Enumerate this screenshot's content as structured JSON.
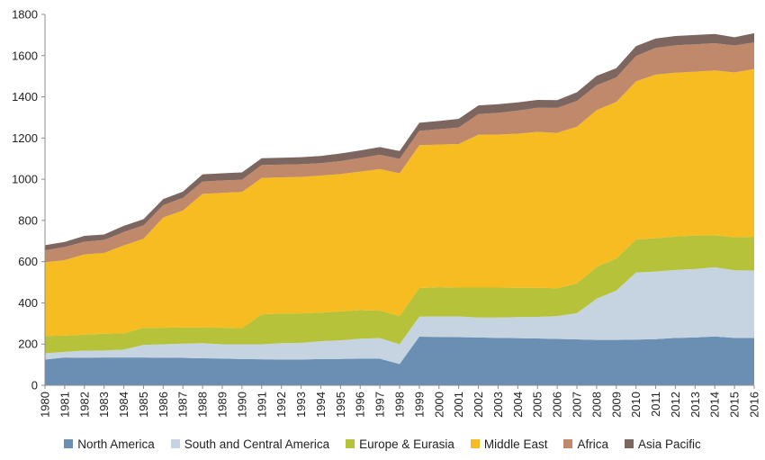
{
  "chart_data": {
    "type": "area",
    "stacked": true,
    "title": "",
    "xlabel": "",
    "ylabel": "",
    "ylim": [
      0,
      1800
    ],
    "yticks": [
      0,
      200,
      400,
      600,
      800,
      1000,
      1200,
      1400,
      1600,
      1800
    ],
    "grid": false,
    "legend_position": "bottom",
    "categories": [
      "1980",
      "1981",
      "1982",
      "1983",
      "1984",
      "1985",
      "1986",
      "1987",
      "1988",
      "1989",
      "1990",
      "1991",
      "1992",
      "1993",
      "1994",
      "1995",
      "1996",
      "1997",
      "1998",
      "1999",
      "2000",
      "2001",
      "2002",
      "2003",
      "2004",
      "2005",
      "2006",
      "2007",
      "2008",
      "2009",
      "2010",
      "2011",
      "2012",
      "2013",
      "2014",
      "2015",
      "2016"
    ],
    "series": [
      {
        "name": "North America",
        "color": "#6a8fb3",
        "values": [
          125,
          135,
          134,
          135,
          135,
          135,
          134,
          133,
          131,
          130,
          127,
          126,
          125,
          125,
          127,
          128,
          129,
          129,
          103,
          236,
          235,
          234,
          232,
          230,
          229,
          227,
          225,
          223,
          220,
          220,
          222,
          224,
          230,
          232,
          237,
          230,
          230
        ]
      },
      {
        "name": "South and Central America",
        "color": "#c6d4e2",
        "values": [
          30,
          27,
          34,
          34,
          38,
          61,
          65,
          69,
          73,
          69,
          72,
          73,
          79,
          81,
          87,
          90,
          97,
          100,
          96,
          97,
          99,
          100,
          97,
          99,
          102,
          105,
          111,
          127,
          200,
          240,
          325,
          328,
          330,
          332,
          336,
          328,
          327
        ]
      },
      {
        "name": "Europe & Eurasia",
        "color": "#b6c23a",
        "values": [
          84,
          79,
          78,
          81,
          79,
          83,
          80,
          78,
          76,
          80,
          78,
          145,
          145,
          143,
          139,
          140,
          139,
          133,
          137,
          139,
          142,
          140,
          145,
          145,
          142,
          141,
          135,
          145,
          155,
          155,
          161,
          162,
          162,
          163,
          155,
          160,
          164
        ]
      },
      {
        "name": "Middle East",
        "color": "#f6bc22",
        "values": [
          358,
          366,
          389,
          392,
          427,
          432,
          535,
          568,
          649,
          655,
          661,
          662,
          660,
          662,
          665,
          667,
          672,
          687,
          693,
          693,
          692,
          697,
          742,
          743,
          748,
          757,
          754,
          760,
          760,
          760,
          767,
          794,
          795,
          795,
          800,
          800,
          814
        ]
      },
      {
        "name": "Africa",
        "color": "#c0896b",
        "values": [
          58,
          64,
          62,
          63,
          65,
          65,
          60,
          62,
          60,
          60,
          60,
          63,
          62,
          62,
          60,
          63,
          66,
          70,
          70,
          70,
          75,
          80,
          100,
          105,
          112,
          117,
          121,
          125,
          121,
          119,
          123,
          130,
          133,
          133,
          132,
          131,
          129
        ]
      },
      {
        "name": "Asia Pacific",
        "color": "#7d6660",
        "values": [
          25,
          25,
          28,
          27,
          30,
          30,
          30,
          30,
          35,
          35,
          35,
          33,
          33,
          34,
          35,
          37,
          37,
          37,
          38,
          39,
          40,
          42,
          42,
          42,
          40,
          38,
          38,
          42,
          46,
          45,
          48,
          45,
          45,
          45,
          45,
          40,
          45
        ]
      }
    ]
  }
}
